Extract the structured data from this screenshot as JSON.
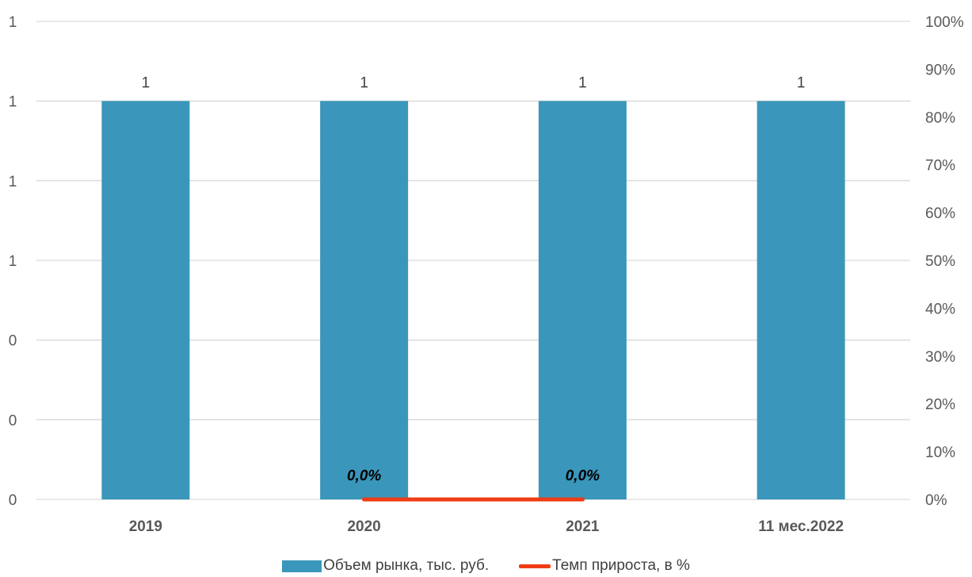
{
  "chart_data": {
    "type": "bar",
    "categories": [
      "2019",
      "2020",
      "2021",
      "11 мес.2022"
    ],
    "series": [
      {
        "name": "Объем рынка, тыс. руб.",
        "type": "bar",
        "axis": "left",
        "values": [
          1,
          1,
          1,
          1
        ],
        "data_labels": [
          "1",
          "1",
          "1",
          "1"
        ],
        "color": "#3a96ba"
      },
      {
        "name": "Темп прироста, в %",
        "type": "line",
        "axis": "right",
        "values": [
          null,
          0.0,
          0.0,
          null
        ],
        "data_labels": [
          "",
          "0,0%",
          "0,0%",
          ""
        ],
        "color": "#f03c14"
      }
    ],
    "y_left": {
      "ticks": [
        "0",
        "0",
        "0",
        "1",
        "1",
        "1",
        "1"
      ],
      "ylim": [
        0,
        1.2
      ]
    },
    "y_right": {
      "ticks": [
        "0%",
        "10%",
        "20%",
        "30%",
        "40%",
        "50%",
        "60%",
        "70%",
        "80%",
        "90%",
        "100%"
      ],
      "ylim": [
        0,
        1
      ]
    },
    "grid": true,
    "legend_position": "bottom"
  }
}
